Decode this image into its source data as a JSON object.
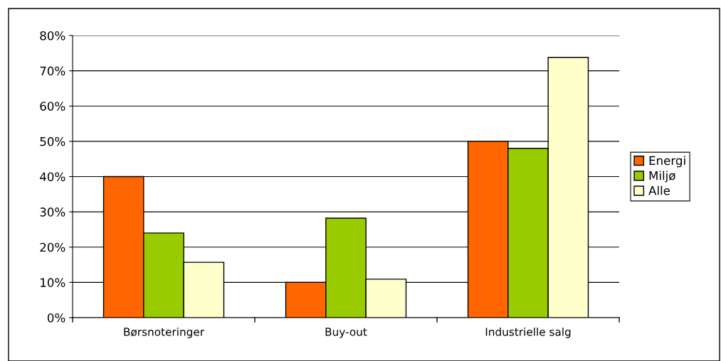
{
  "chart_data": {
    "type": "bar",
    "categories": [
      "Børsnoteringer",
      "Buy-out",
      "Industrielle salg"
    ],
    "series": [
      {
        "name": "Energi",
        "color": "#ff6600",
        "values": [
          40,
          10,
          50
        ]
      },
      {
        "name": "Miljø",
        "color": "#99cc00",
        "values": [
          24,
          28.2,
          48
        ]
      },
      {
        "name": "Alle",
        "color": "#ffffcc",
        "values": [
          15.7,
          10.9,
          73.8
        ]
      }
    ],
    "ylim": [
      0,
      80
    ],
    "yticks": [
      {
        "value": 0,
        "label": "0%"
      },
      {
        "value": 10,
        "label": "10%"
      },
      {
        "value": 20,
        "label": "20%"
      },
      {
        "value": 30,
        "label": "30%"
      },
      {
        "value": 40,
        "label": "40%"
      },
      {
        "value": 50,
        "label": "50%"
      },
      {
        "value": 60,
        "label": "60%"
      },
      {
        "value": 70,
        "label": "70%"
      },
      {
        "value": 80,
        "label": "80%"
      }
    ],
    "grid": "y",
    "legend": "right"
  }
}
